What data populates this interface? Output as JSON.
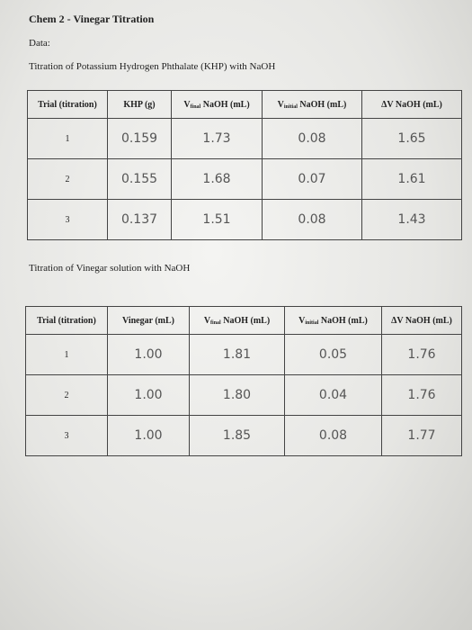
{
  "header": {
    "title": "Chem 2 - Vinegar Titration",
    "data_label": "Data:"
  },
  "sections": [
    {
      "title": "Titration of Potassium Hydrogen Phthalate (KHP) with NaOH",
      "table": {
        "columns": [
          {
            "text": "Trial (titration)"
          },
          {
            "text": "KHP (g)"
          },
          {
            "text": "V",
            "sub": "final",
            "rest": " NaOH (mL)"
          },
          {
            "text": "V",
            "sub": "initial",
            "rest": " NaOH (mL)"
          },
          {
            "text": "ΔV NaOH (mL)"
          }
        ],
        "rows": [
          [
            "1",
            "0.159",
            "1.73",
            "0.08",
            "1.65"
          ],
          [
            "2",
            "0.155",
            "1.68",
            "0.07",
            "1.61"
          ],
          [
            "3",
            "0.137",
            "1.51",
            "0.08",
            "1.43"
          ]
        ]
      }
    },
    {
      "title": "Titration of Vinegar solution with NaOH",
      "table": {
        "columns": [
          {
            "text": "Trial (titration)"
          },
          {
            "text": "Vinegar (mL)"
          },
          {
            "text": "V",
            "sub": "final",
            "rest": " NaOH (mL)"
          },
          {
            "text": "V",
            "sub": "initial",
            "rest": " NaOH (mL)"
          },
          {
            "text": "ΔV NaOH (mL)"
          }
        ],
        "rows": [
          [
            "1",
            "1.00",
            "1.81",
            "0.05",
            "1.76"
          ],
          [
            "2",
            "1.00",
            "1.80",
            "0.04",
            "1.76"
          ],
          [
            "3",
            "1.00",
            "1.85",
            "0.08",
            "1.77"
          ]
        ]
      }
    }
  ]
}
